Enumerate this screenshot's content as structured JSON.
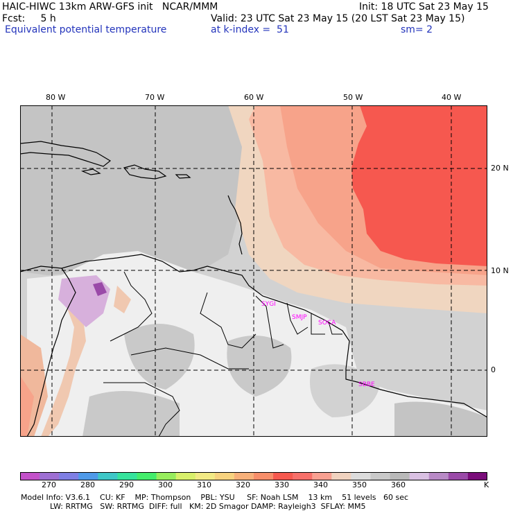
{
  "header": {
    "line1_left": "HAIC-HIWC 13km ARW-GFS init   NCAR/MMM",
    "line1_right": "Init: 18 UTC Sat 23 May 15",
    "line2_left": "Fcst:     5 h",
    "line2_right": "Valid: 23 UTC Sat 23 May 15 (20 LST Sat 23 May 15)",
    "line3_left": "Equivalent potential temperature",
    "line3_mid": "at k-index =  51",
    "line3_right": "sm= 2"
  },
  "map": {
    "lon_labels": [
      "80 W",
      "70 W",
      "60 W",
      "50 W",
      "40 W"
    ],
    "lat_labels": [
      "20 N",
      "10 N",
      "0"
    ],
    "stations": [
      "SYGI",
      "SMJP",
      "SOCA",
      "SBBE"
    ],
    "colors": {
      "gray_light": "#d2d2d2",
      "gray_mid": "#c4c4c4",
      "gray_dark": "#b7b7b7",
      "near_white": "#efefef",
      "tan": "#f0d6c0",
      "peach": "#f8b9a2",
      "salmon": "#f7a38a",
      "red": "#f6584f",
      "lilac": "#d7b0dc",
      "purple": "#9a4aa8",
      "station_text": "#ff00ff"
    }
  },
  "colorbar": {
    "labels": [
      "270",
      "280",
      "290",
      "300",
      "310",
      "320",
      "330",
      "340",
      "350",
      "360",
      "K"
    ],
    "colors": [
      "#c351c9",
      "#9e6fd3",
      "#7f7fe4",
      "#4f9ae9",
      "#3ec7c7",
      "#36e39c",
      "#44ed6c",
      "#97ed5d",
      "#d8f06b",
      "#f2ea85",
      "#f7d27f",
      "#f7b07a",
      "#f78e6a",
      "#f6594f",
      "#f7706a",
      "#f8a091",
      "#f0d2bf",
      "#dcdcdc",
      "#c9c9c9",
      "#b9b9b9",
      "#d9c0e2",
      "#b88ac6",
      "#9a4aa8",
      "#7a0d7a"
    ]
  },
  "footer": {
    "line1": "Model Info: V3.6.1    CU: KF    MP: Thompson    PBL: YSU     SF: Noah LSM    13 km    51 levels   60 sec",
    "line2": "            LW: RRTMG   SW: RRTMG  DIFF: full   KM: 2D Smagor DAMP: Rayleigh3  SFLAY: MM5"
  }
}
